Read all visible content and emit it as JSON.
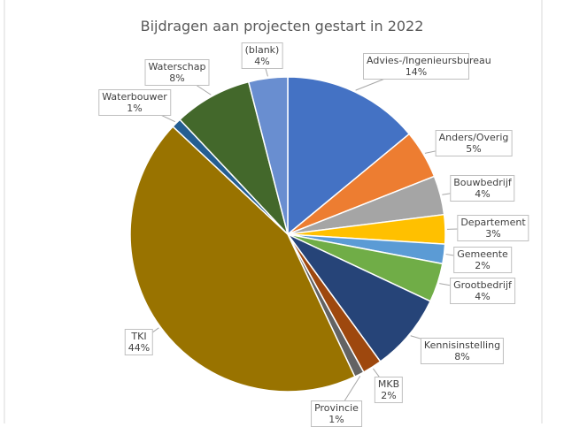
{
  "chart_data": {
    "type": "pie",
    "title": "Bijdragen aan projecten gestart in 2022",
    "categories": [
      "Advies-/Ingenieursbureau",
      "Anders/Overig",
      "Bouwbedrijf",
      "Departement",
      "Gemeente",
      "Grootbedrijf",
      "Kennisinstelling",
      "MKB",
      "Provincie",
      "TKI",
      "Waterbouwer",
      "Waterschap",
      "(blank)"
    ],
    "values": [
      14,
      5,
      4,
      3,
      2,
      4,
      8,
      2,
      1,
      44,
      1,
      8,
      4
    ],
    "value_labels": [
      "14%",
      "5%",
      "4%",
      "3%",
      "2%",
      "4%",
      "8%",
      "2%",
      "1%",
      "44%",
      "1%",
      "8%",
      "4%"
    ],
    "colors": [
      "#4472c4",
      "#ed7d31",
      "#a5a5a5",
      "#ffc000",
      "#5b9bd5",
      "#70ad47",
      "#264478",
      "#9e480e",
      "#636363",
      "#997300",
      "#255e91",
      "#43682b",
      "#698ed0"
    ]
  }
}
